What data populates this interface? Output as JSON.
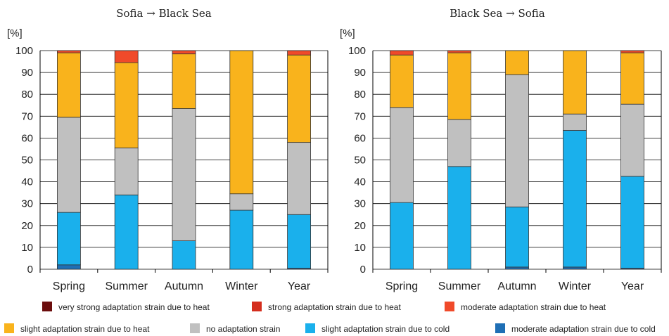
{
  "chart_data": [
    {
      "type": "bar",
      "stacked": true,
      "title": "Sofia → Black Sea",
      "ylabel": "[%]",
      "ylim": [
        0,
        100
      ],
      "yticks": [
        0,
        10,
        20,
        30,
        40,
        50,
        60,
        70,
        80,
        90,
        100
      ],
      "categories": [
        "Spring",
        "Summer",
        "Autumn",
        "Winter",
        "Year"
      ],
      "series": [
        {
          "name": "moderate adaptation strain due to cold",
          "values": [
            2,
            0,
            0,
            0,
            0.5
          ]
        },
        {
          "name": "slight adaptation strain due to cold",
          "values": [
            24,
            34,
            13,
            27,
            24.5
          ]
        },
        {
          "name": "no adaptation strain",
          "values": [
            43.5,
            21.5,
            60.5,
            7.5,
            33
          ]
        },
        {
          "name": "slight adaptation strain due to heat",
          "values": [
            29.5,
            39,
            25,
            65.5,
            40
          ]
        },
        {
          "name": "moderate adaptation strain due to heat",
          "values": [
            1,
            5.5,
            1.5,
            0,
            2
          ]
        },
        {
          "name": "strong adaptation strain due to heat",
          "values": [
            0,
            0,
            0,
            0,
            0
          ]
        },
        {
          "name": "very strong adaptation strain due to heat",
          "values": [
            0,
            0,
            0,
            0,
            0
          ]
        }
      ]
    },
    {
      "type": "bar",
      "stacked": true,
      "title": "Black Sea → Sofia",
      "ylabel": "[%]",
      "ylim": [
        0,
        100
      ],
      "yticks": [
        0,
        10,
        20,
        30,
        40,
        50,
        60,
        70,
        80,
        90,
        100
      ],
      "categories": [
        "Spring",
        "Summer",
        "Autumn",
        "Winter",
        "Year"
      ],
      "series": [
        {
          "name": "moderate adaptation strain due to cold",
          "values": [
            0,
            0,
            1,
            1,
            0.5
          ]
        },
        {
          "name": "slight adaptation strain due to cold",
          "values": [
            30.5,
            47,
            27.5,
            62.5,
            42
          ]
        },
        {
          "name": "no adaptation strain",
          "values": [
            43.5,
            21.5,
            60.5,
            7.5,
            33
          ]
        },
        {
          "name": "slight adaptation strain due to heat",
          "values": [
            24,
            30.5,
            11,
            29,
            23.5
          ]
        },
        {
          "name": "moderate adaptation strain due to heat",
          "values": [
            2,
            1,
            0,
            0,
            1
          ]
        },
        {
          "name": "strong adaptation strain due to heat",
          "values": [
            0,
            0,
            0,
            0,
            0
          ]
        },
        {
          "name": "very strong adaptation strain due to heat",
          "values": [
            0,
            0,
            0,
            0,
            0
          ]
        }
      ]
    }
  ],
  "colors": {
    "very strong adaptation strain due to heat": "#6b0d0d",
    "strong adaptation strain due to heat": "#d42e1e",
    "moderate adaptation strain due to heat": "#f04a2a",
    "slight adaptation strain due to heat": "#f9b31c",
    "no adaptation strain": "#c0c0c0",
    "slight adaptation strain due to cold": "#1ab0ec",
    "moderate adaptation strain due to cold": "#1f6fb5"
  },
  "legend": {
    "row1": [
      "very strong adaptation strain due to heat",
      "strong adaptation strain due to heat",
      "moderate adaptation strain due to heat"
    ],
    "row2": [
      "slight adaptation strain due to heat",
      "no adaptation strain",
      "slight adaptation strain due to cold",
      "moderate adaptation strain due to cold"
    ]
  }
}
